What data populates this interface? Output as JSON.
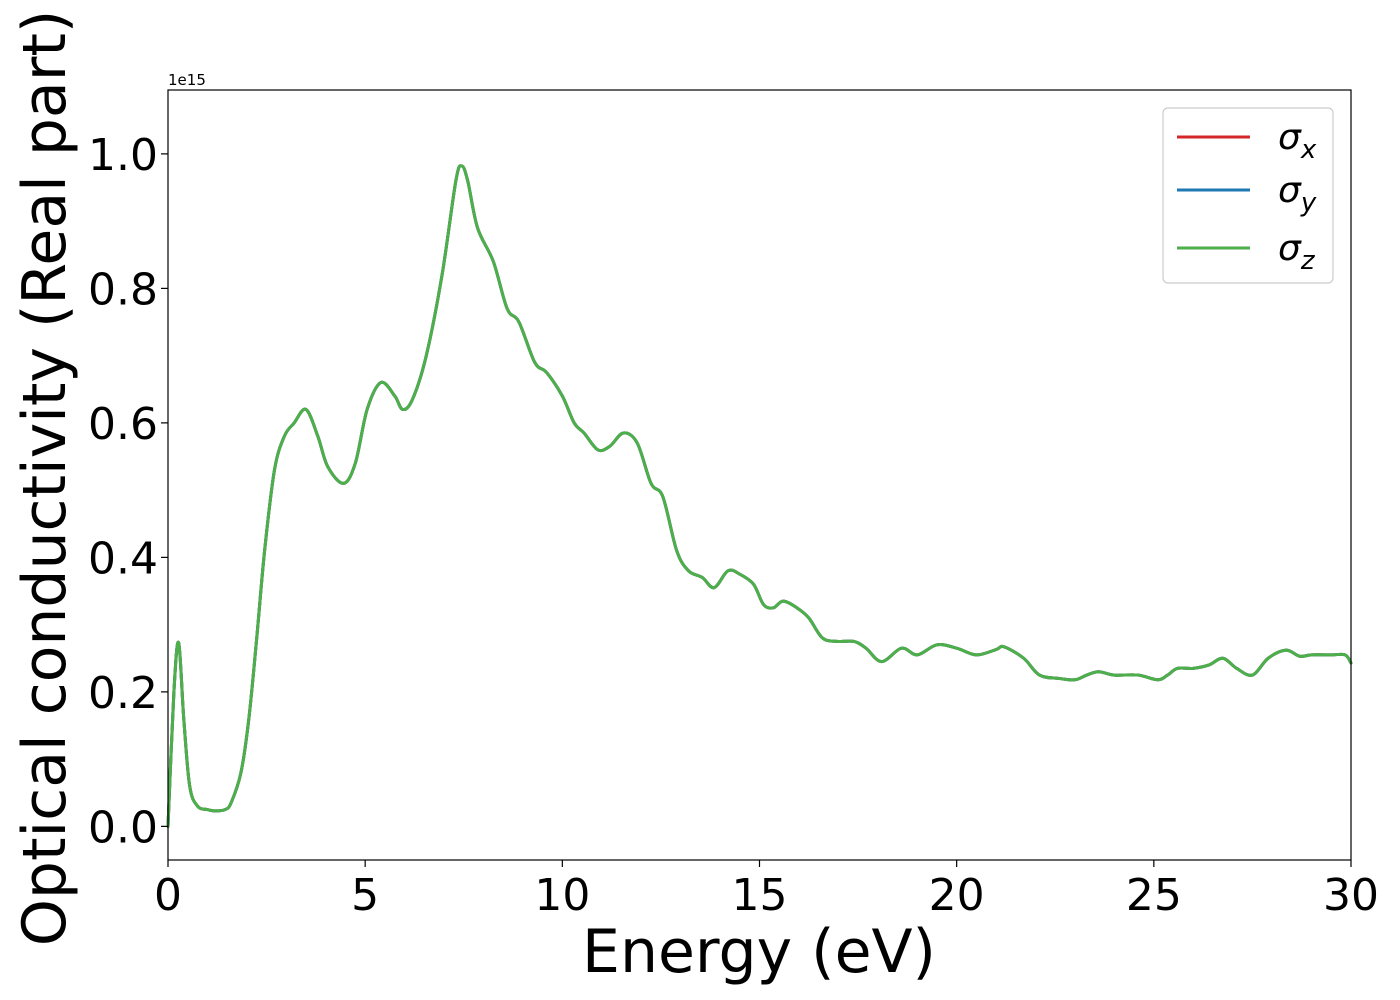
{
  "chart_data": {
    "type": "line",
    "xlabel": "Energy (eV)",
    "ylabel": "Optical conductivity (Real part)",
    "offset_label": "1e15",
    "y_scale_factor": 1000000000000000.0,
    "xlim": [
      0,
      30
    ],
    "ylim": [
      -0.05,
      1.095
    ],
    "xticks": [
      0,
      5,
      10,
      15,
      20,
      25,
      30
    ],
    "xtick_labels": [
      "0",
      "5",
      "10",
      "15",
      "20",
      "25",
      "30"
    ],
    "yticks": [
      0.0,
      0.2,
      0.4,
      0.6,
      0.8,
      1.0
    ],
    "ytick_labels": [
      "0.0",
      "0.2",
      "0.4",
      "0.6",
      "0.8",
      "1.0"
    ],
    "grid": false,
    "legend_position": "top-right",
    "x": [
      0.0,
      0.15,
      0.27,
      0.4,
      0.55,
      0.75,
      1.0,
      1.2,
      1.45,
      1.6,
      1.85,
      2.05,
      2.25,
      2.45,
      2.7,
      2.95,
      3.2,
      3.5,
      3.8,
      4.05,
      4.45,
      4.75,
      5.05,
      5.4,
      5.75,
      5.95,
      6.2,
      6.55,
      6.95,
      7.3,
      7.45,
      7.6,
      7.85,
      8.25,
      8.6,
      8.9,
      9.3,
      9.6,
      10.0,
      10.3,
      10.55,
      10.9,
      11.2,
      11.55,
      11.9,
      12.25,
      12.55,
      12.9,
      13.2,
      13.55,
      13.85,
      14.2,
      14.5,
      14.85,
      15.1,
      15.35,
      15.6,
      15.95,
      16.25,
      16.6,
      17.0,
      17.4,
      17.7,
      18.1,
      18.6,
      19.0,
      19.5,
      20.0,
      20.5,
      21.0,
      21.2,
      21.7,
      22.1,
      22.6,
      23.0,
      23.3,
      23.6,
      24.0,
      24.6,
      25.1,
      25.35,
      25.6,
      26.0,
      26.4,
      26.75,
      27.1,
      27.5,
      27.9,
      28.35,
      28.7,
      29.0,
      29.5,
      29.85,
      30.0
    ],
    "series": [
      {
        "name": "σx",
        "color": "#d62728",
        "values": [
          0.0,
          0.2,
          0.273,
          0.16,
          0.06,
          0.03,
          0.025,
          0.023,
          0.025,
          0.035,
          0.08,
          0.16,
          0.28,
          0.41,
          0.53,
          0.58,
          0.6,
          0.62,
          0.58,
          0.535,
          0.51,
          0.54,
          0.62,
          0.66,
          0.64,
          0.62,
          0.635,
          0.7,
          0.82,
          0.96,
          0.982,
          0.96,
          0.89,
          0.84,
          0.77,
          0.75,
          0.69,
          0.675,
          0.64,
          0.6,
          0.585,
          0.56,
          0.565,
          0.585,
          0.57,
          0.51,
          0.49,
          0.41,
          0.38,
          0.37,
          0.355,
          0.38,
          0.375,
          0.36,
          0.33,
          0.325,
          0.335,
          0.325,
          0.31,
          0.28,
          0.275,
          0.275,
          0.265,
          0.245,
          0.265,
          0.255,
          0.27,
          0.265,
          0.255,
          0.263,
          0.267,
          0.25,
          0.225,
          0.22,
          0.218,
          0.225,
          0.23,
          0.225,
          0.225,
          0.218,
          0.225,
          0.235,
          0.235,
          0.24,
          0.25,
          0.235,
          0.225,
          0.25,
          0.262,
          0.253,
          0.255,
          0.255,
          0.255,
          0.243
        ]
      },
      {
        "name": "σy",
        "color": "#1f77b4",
        "values": [
          0.0,
          0.2,
          0.273,
          0.16,
          0.06,
          0.03,
          0.025,
          0.023,
          0.025,
          0.035,
          0.08,
          0.16,
          0.28,
          0.41,
          0.53,
          0.58,
          0.6,
          0.62,
          0.58,
          0.535,
          0.51,
          0.54,
          0.62,
          0.66,
          0.64,
          0.62,
          0.635,
          0.7,
          0.82,
          0.96,
          0.982,
          0.96,
          0.89,
          0.84,
          0.77,
          0.75,
          0.69,
          0.675,
          0.64,
          0.6,
          0.585,
          0.56,
          0.565,
          0.585,
          0.57,
          0.51,
          0.49,
          0.41,
          0.38,
          0.37,
          0.355,
          0.38,
          0.375,
          0.36,
          0.33,
          0.325,
          0.335,
          0.325,
          0.31,
          0.28,
          0.275,
          0.275,
          0.265,
          0.245,
          0.265,
          0.255,
          0.27,
          0.265,
          0.255,
          0.263,
          0.267,
          0.25,
          0.225,
          0.22,
          0.218,
          0.225,
          0.23,
          0.225,
          0.225,
          0.218,
          0.225,
          0.235,
          0.235,
          0.24,
          0.25,
          0.235,
          0.225,
          0.25,
          0.262,
          0.253,
          0.255,
          0.255,
          0.255,
          0.243
        ]
      },
      {
        "name": "σz",
        "color": "#4daf4a",
        "values": [
          0.0,
          0.2,
          0.273,
          0.16,
          0.06,
          0.03,
          0.025,
          0.023,
          0.025,
          0.035,
          0.08,
          0.16,
          0.28,
          0.41,
          0.53,
          0.58,
          0.6,
          0.62,
          0.58,
          0.535,
          0.51,
          0.54,
          0.62,
          0.66,
          0.64,
          0.62,
          0.635,
          0.7,
          0.82,
          0.96,
          0.982,
          0.96,
          0.89,
          0.84,
          0.77,
          0.75,
          0.69,
          0.675,
          0.64,
          0.6,
          0.585,
          0.56,
          0.565,
          0.585,
          0.57,
          0.51,
          0.49,
          0.41,
          0.38,
          0.37,
          0.355,
          0.38,
          0.375,
          0.36,
          0.33,
          0.325,
          0.335,
          0.325,
          0.31,
          0.28,
          0.275,
          0.275,
          0.265,
          0.245,
          0.265,
          0.255,
          0.27,
          0.265,
          0.255,
          0.263,
          0.267,
          0.25,
          0.225,
          0.22,
          0.218,
          0.225,
          0.23,
          0.225,
          0.225,
          0.218,
          0.225,
          0.235,
          0.235,
          0.24,
          0.25,
          0.235,
          0.225,
          0.25,
          0.262,
          0.253,
          0.255,
          0.255,
          0.255,
          0.243
        ]
      }
    ],
    "legend": [
      {
        "symbol": "σ",
        "sub": "x",
        "color": "#d62728"
      },
      {
        "symbol": "σ",
        "sub": "y",
        "color": "#1f77b4"
      },
      {
        "symbol": "σ",
        "sub": "z",
        "color": "#4daf4a"
      }
    ]
  }
}
